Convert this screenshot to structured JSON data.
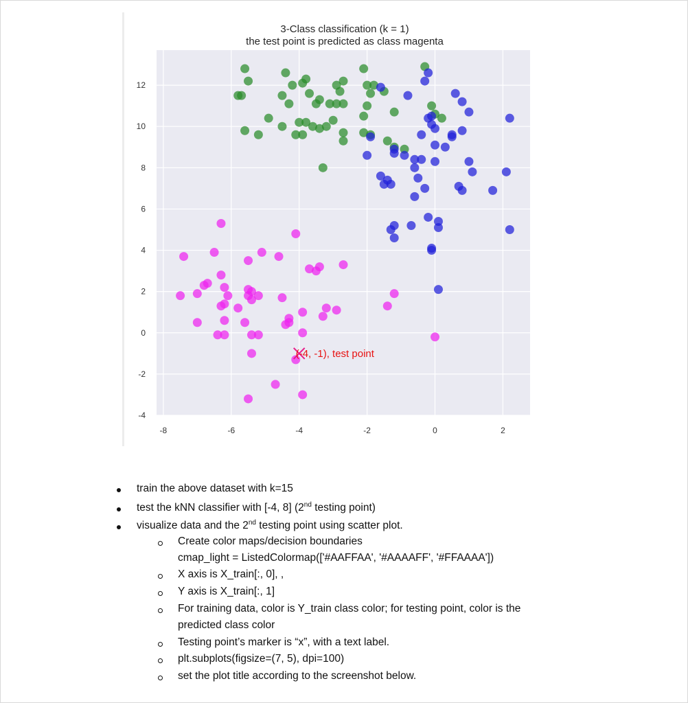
{
  "chart_data": {
    "type": "scatter",
    "title": "3-Class classification (k = 1)",
    "subtitle": "the test point is predicted as class magenta",
    "xlim": [
      -8.2,
      2.8
    ],
    "ylim": [
      -4,
      13.7
    ],
    "x_ticks": [
      -8,
      -6,
      -4,
      -2,
      0,
      2
    ],
    "y_ticks": [
      -4,
      -2,
      0,
      2,
      4,
      6,
      8,
      10,
      12
    ],
    "x_tick_labels": [
      "-8",
      "-6",
      "-4",
      "-2",
      "0",
      "2"
    ],
    "y_tick_labels": [
      "-4",
      "-2",
      "0",
      "2",
      "4",
      "6",
      "8",
      "10",
      "12"
    ],
    "grid": true,
    "background": "#eaeaf2",
    "series": [
      {
        "color": "#2a8c2a",
        "points": [
          [
            -5.6,
            12.8
          ],
          [
            -5.5,
            12.2
          ],
          [
            -5.8,
            11.5
          ],
          [
            -5.7,
            11.5
          ],
          [
            -4.4,
            12.6
          ],
          [
            -4.5,
            11.5
          ],
          [
            -4.3,
            11.1
          ],
          [
            -4.2,
            12.0
          ],
          [
            -3.9,
            12.1
          ],
          [
            -3.8,
            12.3
          ],
          [
            -3.7,
            11.6
          ],
          [
            -3.5,
            11.1
          ],
          [
            -3.4,
            11.3
          ],
          [
            -3.1,
            11.1
          ],
          [
            -2.9,
            11.1
          ],
          [
            -2.8,
            11.7
          ],
          [
            -2.7,
            11.1
          ],
          [
            -2.7,
            12.2
          ],
          [
            -2.9,
            12.0
          ],
          [
            -2.1,
            12.8
          ],
          [
            -2.0,
            12.0
          ],
          [
            -1.9,
            11.6
          ],
          [
            -1.5,
            11.7
          ],
          [
            -1.8,
            12.0
          ],
          [
            -2.0,
            11.0
          ],
          [
            -1.2,
            10.7
          ],
          [
            -2.1,
            10.5
          ],
          [
            -0.3,
            12.9
          ],
          [
            -0.1,
            11.0
          ],
          [
            -5.6,
            9.8
          ],
          [
            -5.2,
            9.6
          ],
          [
            -4.9,
            10.4
          ],
          [
            -4.5,
            10.0
          ],
          [
            -4.0,
            10.2
          ],
          [
            -3.8,
            10.2
          ],
          [
            -3.6,
            10.0
          ],
          [
            -3.4,
            9.9
          ],
          [
            -3.2,
            10.0
          ],
          [
            -3.0,
            10.3
          ],
          [
            -2.7,
            9.7
          ],
          [
            -2.7,
            9.3
          ],
          [
            -2.1,
            9.7
          ],
          [
            -1.4,
            9.3
          ],
          [
            -1.2,
            9.0
          ],
          [
            -0.9,
            8.9
          ],
          [
            -3.3,
            8.0
          ],
          [
            -3.9,
            9.6
          ],
          [
            -4.1,
            9.6
          ],
          [
            0.0,
            10.6
          ],
          [
            0.2,
            10.4
          ],
          [
            -1.9,
            9.6
          ]
        ]
      },
      {
        "color": "#2020d8",
        "points": [
          [
            -0.2,
            12.6
          ],
          [
            -0.3,
            12.2
          ],
          [
            -0.8,
            11.5
          ],
          [
            -1.6,
            11.9
          ],
          [
            0.6,
            11.6
          ],
          [
            0.8,
            11.2
          ],
          [
            1.0,
            10.7
          ],
          [
            2.2,
            10.4
          ],
          [
            -0.1,
            10.5
          ],
          [
            -0.2,
            10.4
          ],
          [
            -0.1,
            10.1
          ],
          [
            0.0,
            9.9
          ],
          [
            -0.4,
            9.6
          ],
          [
            0.5,
            9.6
          ],
          [
            0.8,
            9.8
          ],
          [
            0.0,
            9.1
          ],
          [
            0.3,
            9.0
          ],
          [
            -0.9,
            8.6
          ],
          [
            -0.6,
            8.4
          ],
          [
            -0.4,
            8.4
          ],
          [
            0.0,
            8.3
          ],
          [
            -1.2,
            8.9
          ],
          [
            -2.0,
            8.6
          ],
          [
            -1.9,
            9.5
          ],
          [
            1.0,
            8.3
          ],
          [
            1.1,
            7.8
          ],
          [
            -0.6,
            8.0
          ],
          [
            -1.6,
            7.6
          ],
          [
            -1.4,
            7.4
          ],
          [
            -1.5,
            7.2
          ],
          [
            -1.3,
            7.2
          ],
          [
            -0.5,
            7.5
          ],
          [
            -0.3,
            7.0
          ],
          [
            0.7,
            7.1
          ],
          [
            0.8,
            6.9
          ],
          [
            1.7,
            6.9
          ],
          [
            2.1,
            7.8
          ],
          [
            -0.6,
            6.6
          ],
          [
            -0.2,
            5.6
          ],
          [
            0.1,
            5.4
          ],
          [
            0.1,
            5.1
          ],
          [
            -1.2,
            5.2
          ],
          [
            -1.3,
            5.0
          ],
          [
            -1.2,
            4.6
          ],
          [
            -0.7,
            5.2
          ],
          [
            -0.1,
            4.1
          ],
          [
            -0.1,
            4.0
          ],
          [
            2.2,
            5.0
          ],
          [
            0.1,
            2.1
          ],
          [
            -1.2,
            8.7
          ],
          [
            0.5,
            9.5
          ]
        ]
      },
      {
        "color": "#ee22ee",
        "points": [
          [
            -6.3,
            5.3
          ],
          [
            -6.5,
            3.9
          ],
          [
            -7.4,
            3.7
          ],
          [
            -5.5,
            3.5
          ],
          [
            -5.1,
            3.9
          ],
          [
            -4.6,
            3.7
          ],
          [
            -4.1,
            4.8
          ],
          [
            -3.7,
            3.1
          ],
          [
            -3.5,
            3.0
          ],
          [
            -3.4,
            3.2
          ],
          [
            -2.7,
            3.3
          ],
          [
            -6.3,
            2.8
          ],
          [
            -6.8,
            2.3
          ],
          [
            -6.7,
            2.4
          ],
          [
            -6.2,
            2.2
          ],
          [
            -5.5,
            2.1
          ],
          [
            -5.4,
            2.0
          ],
          [
            -6.1,
            1.8
          ],
          [
            -5.5,
            1.8
          ],
          [
            -5.4,
            1.6
          ],
          [
            -5.2,
            1.8
          ],
          [
            -4.5,
            1.7
          ],
          [
            -6.3,
            1.3
          ],
          [
            -6.2,
            1.4
          ],
          [
            -5.8,
            1.2
          ],
          [
            -7.5,
            1.8
          ],
          [
            -7.0,
            1.9
          ],
          [
            -3.9,
            1.0
          ],
          [
            -3.2,
            1.2
          ],
          [
            -2.9,
            1.1
          ],
          [
            -3.3,
            0.8
          ],
          [
            -4.3,
            0.7
          ],
          [
            -4.4,
            0.4
          ],
          [
            -4.3,
            0.5
          ],
          [
            -7.0,
            0.5
          ],
          [
            -6.2,
            0.6
          ],
          [
            -5.6,
            0.5
          ],
          [
            -6.4,
            -0.1
          ],
          [
            -6.2,
            -0.1
          ],
          [
            -5.4,
            -0.1
          ],
          [
            -5.2,
            -0.1
          ],
          [
            -3.9,
            0.0
          ],
          [
            -5.4,
            -1.0
          ],
          [
            -4.1,
            -1.3
          ],
          [
            -1.4,
            1.3
          ],
          [
            -1.2,
            1.9
          ],
          [
            0.0,
            -0.2
          ],
          [
            -4.7,
            -2.5
          ],
          [
            -3.9,
            -3.0
          ],
          [
            -5.5,
            -3.2
          ]
        ]
      }
    ],
    "test_point": {
      "x": -4,
      "y": -1,
      "color": "#e81c8a",
      "marker": "x"
    },
    "annotation": {
      "text": "(-4, -1), test point",
      "color": "#e81212"
    }
  },
  "document": {
    "bullets": [
      {
        "text": "train the above dataset with k=15"
      },
      {
        "text_before": "test the kNN classifier with [-4, 8] (2",
        "sup": "nd",
        "text_after": " testing point)"
      },
      {
        "text_before": "visualize data and the 2",
        "sup": "nd",
        "text_after": " testing point using scatter plot."
      }
    ],
    "sub_items": [
      {
        "line1": "Create color maps/decision boundaries",
        "line2": "cmap_light = ListedColormap(['#AAFFAA', '#AAAAFF', '#FFAAAA'])"
      },
      {
        "line1": "X axis is X_train[:, 0], ,"
      },
      {
        "line1": "Y axis is X_train[:, 1]"
      },
      {
        "line1": "For training data, color is Y_train class color; for testing point, color is the",
        "line2": "predicted class color"
      },
      {
        "line1": "Testing point’s marker is “x”, with a text label."
      },
      {
        "line1": "plt.subplots(figsize=(7, 5), dpi=100)"
      },
      {
        "line1": "set the plot title according to the screenshot below."
      }
    ]
  }
}
